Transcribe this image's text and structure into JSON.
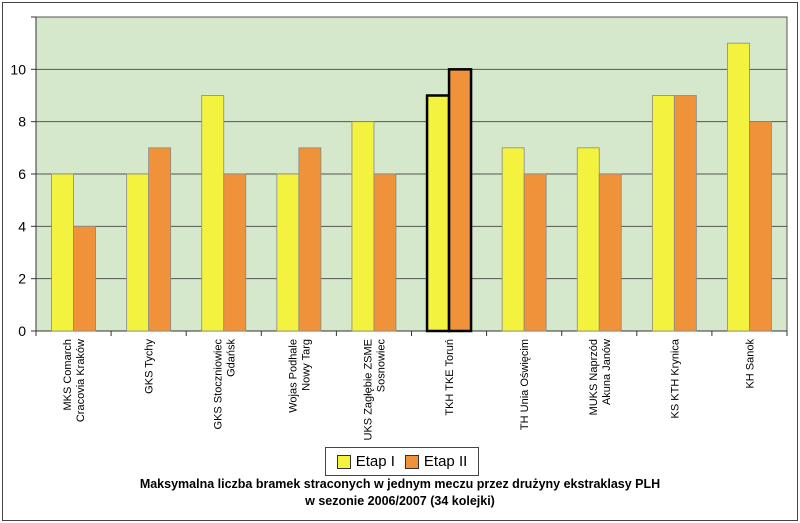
{
  "chart_data": {
    "type": "bar",
    "categories": [
      [
        "MKS Comarch",
        "Cracovia Kraków"
      ],
      [
        "GKS Tychy"
      ],
      [
        "GKS Stoczniowiec",
        "Gdańsk"
      ],
      [
        "Wojas Podhale",
        "Nowy Targ"
      ],
      [
        "UKS Zagłębie ZSME",
        "Sosnowiec"
      ],
      [
        "TKH TKE Toruń"
      ],
      [
        "TH Unia Oświęcim"
      ],
      [
        "MUKS Naprzód",
        "Akuna Janów"
      ],
      [
        "KS KTH Krynica"
      ],
      [
        "KH Sanok"
      ]
    ],
    "series": [
      {
        "name": "Etap I",
        "color": "#f2f23f",
        "values": [
          6,
          6,
          9,
          6,
          8,
          9,
          7,
          7,
          9,
          11
        ]
      },
      {
        "name": "Etap II",
        "color": "#f0923a",
        "values": [
          4,
          7,
          6,
          7,
          6,
          10,
          6,
          6,
          9,
          8
        ]
      }
    ],
    "highlight_category_index": 5,
    "yticks": [
      0,
      2,
      4,
      6,
      8,
      10
    ],
    "ylim": [
      0,
      12
    ],
    "grid": true,
    "plot_background": "#d6e8cc",
    "legend_position": "bottom"
  },
  "caption": {
    "line1": "Maksymalna liczba bramek straconych w jednym meczu przez drużyny ekstraklasy PLH",
    "line2": "w sezonie 2006/2007 (34 kolejki)"
  }
}
